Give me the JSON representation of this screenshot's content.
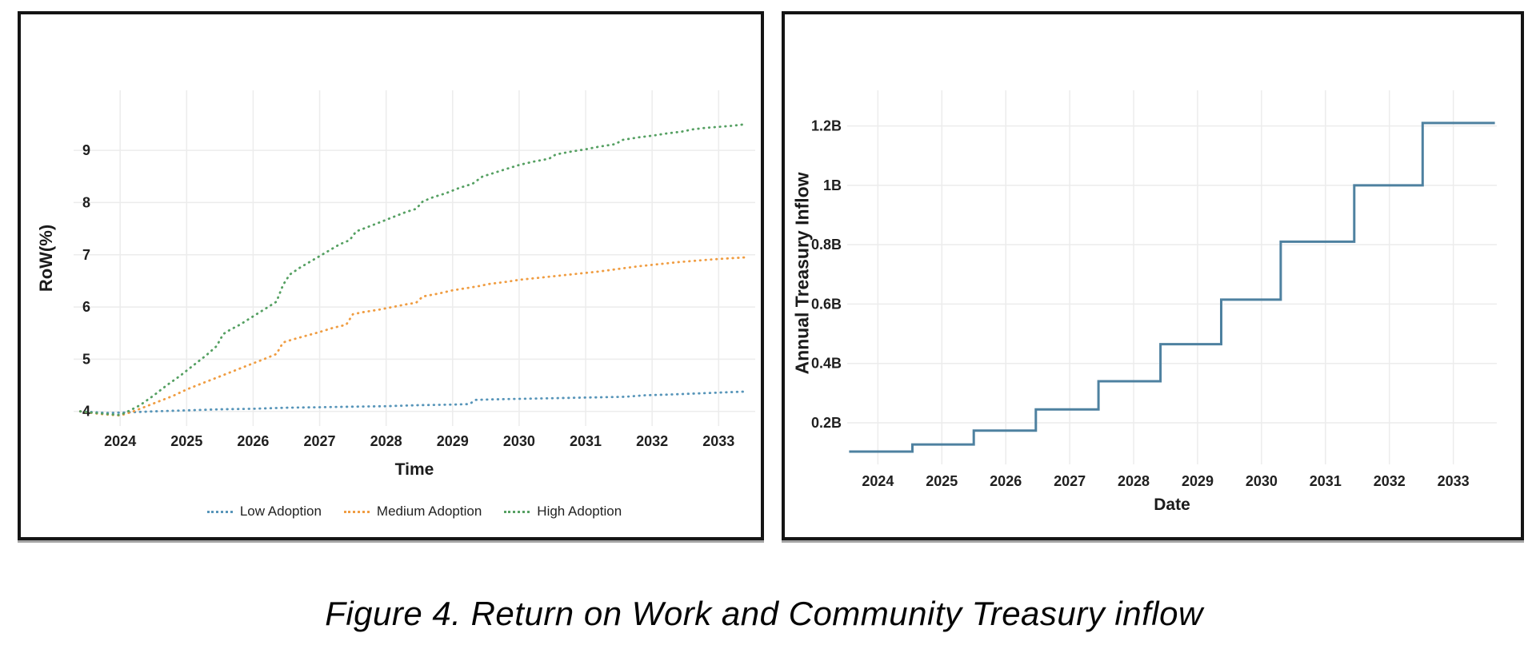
{
  "caption": "Figure 4. Return on Work and Community Treasury inflow",
  "chart_data": [
    {
      "type": "line",
      "line_style": "dotted",
      "title": "",
      "xlabel": "Time",
      "ylabel": "RoW(%)",
      "x_ticks": [
        2024,
        2025,
        2026,
        2027,
        2028,
        2029,
        2030,
        2031,
        2032,
        2033
      ],
      "y_ticks": [
        4,
        5,
        6,
        7,
        8,
        9
      ],
      "xlim": [
        2023.3,
        2033.55
      ],
      "ylim": [
        3.72,
        10.15
      ],
      "grid": true,
      "grid_color": "#ececec",
      "legend_position": "bottom",
      "series": [
        {
          "name": "Low Adoption",
          "color": "#5795b9",
          "points": [
            [
              2023.4,
              4.0
            ],
            [
              2023.8,
              3.97
            ],
            [
              2024.1,
              3.98
            ],
            [
              2024.5,
              4.0
            ],
            [
              2025.0,
              4.02
            ],
            [
              2025.5,
              4.04
            ],
            [
              2026.0,
              4.05
            ],
            [
              2026.5,
              4.07
            ],
            [
              2027.0,
              4.08
            ],
            [
              2027.5,
              4.09
            ],
            [
              2028.0,
              4.1
            ],
            [
              2028.5,
              4.12
            ],
            [
              2029.0,
              4.13
            ],
            [
              2029.25,
              4.14
            ],
            [
              2029.35,
              4.22
            ],
            [
              2029.6,
              4.23
            ],
            [
              2030.0,
              4.24
            ],
            [
              2030.4,
              4.25
            ],
            [
              2030.8,
              4.26
            ],
            [
              2031.2,
              4.27
            ],
            [
              2031.6,
              4.28
            ],
            [
              2031.9,
              4.31
            ],
            [
              2032.2,
              4.32
            ],
            [
              2032.6,
              4.34
            ],
            [
              2033.0,
              4.36
            ],
            [
              2033.4,
              4.38
            ]
          ]
        },
        {
          "name": "Medium Adoption",
          "color": "#f09d42",
          "points": [
            [
              2023.4,
              4.0
            ],
            [
              2023.7,
              3.95
            ],
            [
              2024.0,
              3.92
            ],
            [
              2024.2,
              4.0
            ],
            [
              2024.4,
              4.1
            ],
            [
              2024.6,
              4.2
            ],
            [
              2024.8,
              4.3
            ],
            [
              2025.0,
              4.42
            ],
            [
              2025.2,
              4.52
            ],
            [
              2025.4,
              4.62
            ],
            [
              2025.6,
              4.72
            ],
            [
              2025.8,
              4.82
            ],
            [
              2026.0,
              4.92
            ],
            [
              2026.2,
              5.02
            ],
            [
              2026.35,
              5.1
            ],
            [
              2026.45,
              5.32
            ],
            [
              2026.6,
              5.38
            ],
            [
              2026.8,
              5.45
            ],
            [
              2027.0,
              5.52
            ],
            [
              2027.2,
              5.6
            ],
            [
              2027.4,
              5.66
            ],
            [
              2027.5,
              5.86
            ],
            [
              2027.65,
              5.9
            ],
            [
              2027.9,
              5.95
            ],
            [
              2028.1,
              6.0
            ],
            [
              2028.3,
              6.05
            ],
            [
              2028.45,
              6.08
            ],
            [
              2028.55,
              6.2
            ],
            [
              2028.8,
              6.26
            ],
            [
              2029.0,
              6.32
            ],
            [
              2029.2,
              6.36
            ],
            [
              2029.4,
              6.4
            ],
            [
              2029.55,
              6.44
            ],
            [
              2029.8,
              6.48
            ],
            [
              2030.0,
              6.52
            ],
            [
              2030.3,
              6.56
            ],
            [
              2030.6,
              6.6
            ],
            [
              2030.9,
              6.64
            ],
            [
              2031.2,
              6.68
            ],
            [
              2031.5,
              6.73
            ],
            [
              2031.8,
              6.78
            ],
            [
              2032.1,
              6.82
            ],
            [
              2032.4,
              6.86
            ],
            [
              2032.7,
              6.89
            ],
            [
              2033.0,
              6.92
            ],
            [
              2033.4,
              6.95
            ]
          ]
        },
        {
          "name": "High Adoption",
          "color": "#55a062",
          "points": [
            [
              2023.4,
              4.0
            ],
            [
              2023.7,
              3.96
            ],
            [
              2024.0,
              3.93
            ],
            [
              2024.15,
              4.02
            ],
            [
              2024.3,
              4.12
            ],
            [
              2024.5,
              4.3
            ],
            [
              2024.7,
              4.5
            ],
            [
              2024.9,
              4.68
            ],
            [
              2025.1,
              4.88
            ],
            [
              2025.3,
              5.08
            ],
            [
              2025.45,
              5.25
            ],
            [
              2025.55,
              5.48
            ],
            [
              2025.65,
              5.56
            ],
            [
              2025.8,
              5.66
            ],
            [
              2026.0,
              5.82
            ],
            [
              2026.2,
              5.98
            ],
            [
              2026.35,
              6.1
            ],
            [
              2026.45,
              6.42
            ],
            [
              2026.55,
              6.62
            ],
            [
              2026.7,
              6.75
            ],
            [
              2026.9,
              6.9
            ],
            [
              2027.1,
              7.05
            ],
            [
              2027.3,
              7.2
            ],
            [
              2027.45,
              7.28
            ],
            [
              2027.55,
              7.45
            ],
            [
              2027.7,
              7.52
            ],
            [
              2027.9,
              7.62
            ],
            [
              2028.1,
              7.72
            ],
            [
              2028.3,
              7.82
            ],
            [
              2028.45,
              7.88
            ],
            [
              2028.55,
              8.02
            ],
            [
              2028.7,
              8.1
            ],
            [
              2028.9,
              8.18
            ],
            [
              2029.1,
              8.28
            ],
            [
              2029.3,
              8.36
            ],
            [
              2029.45,
              8.5
            ],
            [
              2029.6,
              8.56
            ],
            [
              2029.8,
              8.64
            ],
            [
              2030.0,
              8.72
            ],
            [
              2030.2,
              8.78
            ],
            [
              2030.45,
              8.84
            ],
            [
              2030.55,
              8.92
            ],
            [
              2030.8,
              8.98
            ],
            [
              2031.0,
              9.02
            ],
            [
              2031.2,
              9.07
            ],
            [
              2031.45,
              9.12
            ],
            [
              2031.55,
              9.2
            ],
            [
              2031.8,
              9.25
            ],
            [
              2032.0,
              9.28
            ],
            [
              2032.2,
              9.32
            ],
            [
              2032.45,
              9.36
            ],
            [
              2032.6,
              9.4
            ],
            [
              2032.8,
              9.43
            ],
            [
              2033.0,
              9.45
            ],
            [
              2033.2,
              9.47
            ],
            [
              2033.4,
              9.5
            ]
          ]
        }
      ]
    },
    {
      "type": "line",
      "line_style": "step",
      "title": "",
      "xlabel": "Date",
      "ylabel": "Annual Treasury Inflow",
      "x_ticks": [
        2024,
        2025,
        2026,
        2027,
        2028,
        2029,
        2030,
        2031,
        2032,
        2033
      ],
      "y_ticks": [
        0.2,
        0.4,
        0.6,
        0.8,
        1.0,
        1.2
      ],
      "y_tick_labels": [
        "0.2B",
        "0.4B",
        "0.6B",
        "0.8B",
        "1B",
        "1.2B"
      ],
      "xlim": [
        2023.52,
        2033.68
      ],
      "ylim": [
        0.06,
        1.32
      ],
      "grid": true,
      "grid_color": "#ececec",
      "legend_position": "none",
      "series": [
        {
          "name": "Annual Treasury Inflow",
          "color": "#4e81a0",
          "step": true,
          "points": [
            [
              2023.55,
              0.103
            ],
            [
              2024.54,
              0.127
            ],
            [
              2025.5,
              0.174
            ],
            [
              2026.47,
              0.245
            ],
            [
              2027.45,
              0.34
            ],
            [
              2028.42,
              0.465
            ],
            [
              2029.37,
              0.615
            ],
            [
              2030.3,
              0.81
            ],
            [
              2031.45,
              1.0
            ],
            [
              2032.52,
              1.21
            ],
            [
              2033.65,
              1.21
            ]
          ]
        }
      ]
    }
  ]
}
